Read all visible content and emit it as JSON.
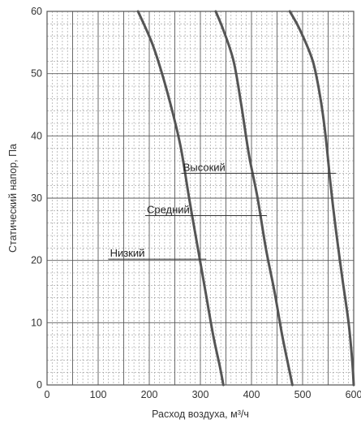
{
  "chart_data": {
    "type": "line",
    "xlabel": "Расход воздуха, м³/ч",
    "ylabel": "Статический напор, Па",
    "xlim": [
      0,
      600
    ],
    "ylim": [
      0,
      60
    ],
    "x_ticks": [
      "0",
      "100",
      "200",
      "300",
      "400",
      "500",
      "600"
    ],
    "y_ticks": [
      "0",
      "10",
      "20",
      "30",
      "40",
      "50",
      "60"
    ],
    "grid": true,
    "series": [
      {
        "name": "Низкий",
        "x": [
          178,
          205,
          225,
          245,
          262,
          278,
          295,
          310,
          325,
          338,
          345
        ],
        "y": [
          60,
          55,
          50,
          44,
          38,
          30,
          22,
          15,
          8,
          3,
          0
        ]
      },
      {
        "name": "Средний",
        "x": [
          330,
          345,
          365,
          380,
          395,
          412,
          428,
          445,
          460,
          475,
          480
        ],
        "y": [
          60,
          57,
          52,
          45,
          37,
          30,
          22,
          15,
          8,
          2,
          0
        ]
      },
      {
        "name": "Высокий",
        "x": [
          475,
          495,
          520,
          535,
          545,
          555,
          565,
          578,
          590,
          597,
          600
        ],
        "y": [
          60,
          57,
          52,
          46,
          40,
          32,
          25,
          17,
          10,
          4,
          0
        ]
      }
    ]
  }
}
